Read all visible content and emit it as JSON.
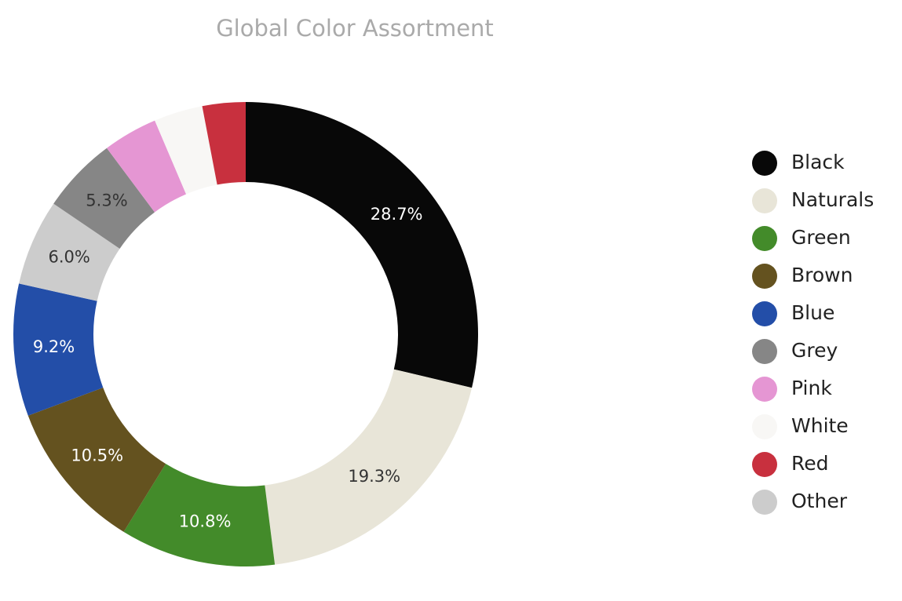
{
  "chart_data": {
    "type": "donut",
    "title": "Global Color Assortment",
    "categories": [
      "Black",
      "Naturals",
      "Green",
      "Brown",
      "Blue",
      "Grey",
      "Pink",
      "White",
      "Red",
      "Other"
    ],
    "values": [
      28.7,
      19.3,
      10.8,
      10.5,
      9.2,
      5.3,
      3.8,
      3.4,
      3.0,
      6.0
    ],
    "value_labels": [
      "28.7%",
      "19.3%",
      "10.8%",
      "10.5%",
      "9.2%",
      "5.3%",
      null,
      null,
      null,
      "6.0%"
    ],
    "colors": [
      "#080808",
      "#e8e5d8",
      "#438b2a",
      "#64521f",
      "#234ea8",
      "#868686",
      "#e596d3",
      "#f8f7f5",
      "#c8303e",
      "#cccccc"
    ],
    "sort": true,
    "legend": "right"
  }
}
